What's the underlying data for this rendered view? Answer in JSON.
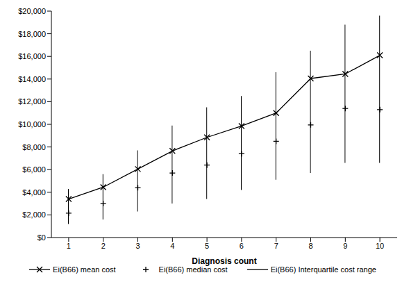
{
  "chart_data": {
    "type": "line",
    "x_label": "Diagnosis count",
    "categories": [
      "1",
      "2",
      "3",
      "4",
      "5",
      "6",
      "7",
      "8",
      "9",
      "10"
    ],
    "ylim": [
      0,
      20000
    ],
    "yticks": [
      {
        "value": 0,
        "label": "$0"
      },
      {
        "value": 2000,
        "label": "$2,000"
      },
      {
        "value": 4000,
        "label": "$4,000"
      },
      {
        "value": 6000,
        "label": "$6,000"
      },
      {
        "value": 8000,
        "label": "$8,000"
      },
      {
        "value": 10000,
        "label": "$10,000"
      },
      {
        "value": 12000,
        "label": "$12,000"
      },
      {
        "value": 14000,
        "label": "$14,000"
      },
      {
        "value": 16000,
        "label": "$16,000"
      },
      {
        "value": 18000,
        "label": "$18,000"
      },
      {
        "value": 20000,
        "label": "$20,000"
      }
    ],
    "grid": false,
    "legend": "bottom",
    "series": [
      {
        "name": "Ei(B66) mean cost",
        "type": "line",
        "marker": "x",
        "color": "#000000",
        "values": [
          3400,
          4450,
          6050,
          7650,
          8850,
          9850,
          11000,
          14050,
          14450,
          16100
        ]
      },
      {
        "name": "Ei(B66) median cost",
        "type": "scatter",
        "marker": "plus",
        "color": "#000000",
        "values": [
          2150,
          3000,
          4400,
          5700,
          6400,
          7400,
          8500,
          9950,
          11400,
          11300
        ]
      },
      {
        "name": "Ei(B66) Interquartile cost range",
        "type": "range",
        "color": "#000000",
        "values": [
          [
            1200,
            4300
          ],
          [
            1600,
            5600
          ],
          [
            2300,
            7700
          ],
          [
            3000,
            9900
          ],
          [
            3400,
            11500
          ],
          [
            4200,
            12500
          ],
          [
            5100,
            14600
          ],
          [
            5700,
            16500
          ],
          [
            6600,
            18800
          ],
          [
            6600,
            19600
          ]
        ]
      }
    ]
  }
}
